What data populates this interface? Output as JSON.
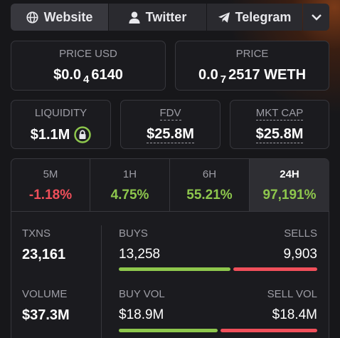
{
  "nav": {
    "buttons": [
      "Website",
      "Twitter",
      "Telegram"
    ]
  },
  "price_usd": {
    "label": "PRICE USD",
    "prefix": "$0.0",
    "subscript": "4",
    "digits": "6140"
  },
  "price": {
    "label": "PRICE",
    "prefix": "0.0",
    "subscript": "7",
    "digits": "2517 WETH"
  },
  "liquidity": {
    "label": "LIQUIDITY",
    "value": "$1.1M"
  },
  "fdv": {
    "label": "FDV",
    "value": "$25.8M"
  },
  "mkt_cap": {
    "label": "MKT CAP",
    "value": "$25.8M"
  },
  "timeframes": [
    {
      "label": "5M",
      "change": "-1.18%"
    },
    {
      "label": "1H",
      "change": "4.75%"
    },
    {
      "label": "6H",
      "change": "55.21%"
    },
    {
      "label": "24H",
      "change": "97,191%"
    }
  ],
  "txns": {
    "label": "TXNS",
    "value": "23,161"
  },
  "buys": {
    "label": "BUYS",
    "value": "13,258"
  },
  "sells": {
    "label": "SELLS",
    "value": "9,903"
  },
  "volume": {
    "label": "VOLUME",
    "value": "$37.3M"
  },
  "buy_vol": {
    "label": "BUY VOL",
    "value": "$18.9M"
  },
  "sell_vol": {
    "label": "SELL VOL",
    "value": "$18.4M"
  }
}
